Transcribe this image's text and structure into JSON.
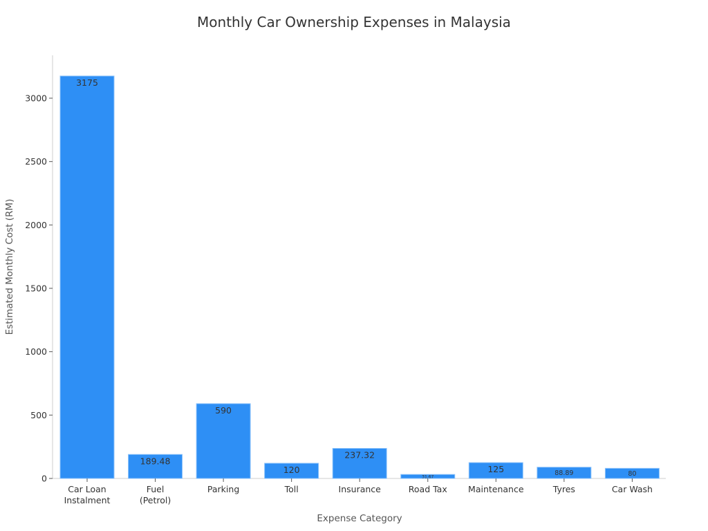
{
  "chart_data": {
    "type": "bar",
    "title": "Monthly Car Ownership Expenses in Malaysia",
    "xlabel": "Expense Category",
    "ylabel": "Estimated Monthly Cost (RM)",
    "categories": [
      "Car Loan\nInstalment",
      "Fuel\n(Petrol)",
      "Parking",
      "Toll",
      "Insurance",
      "Road Tax",
      "Maintenance",
      "Tyres",
      "Car Wash"
    ],
    "values": [
      3175,
      189.48,
      590,
      120,
      237.32,
      31.67,
      125,
      88.89,
      80
    ],
    "data_labels": [
      "3175",
      "189.48",
      "590",
      "120",
      "237.32",
      "31.67",
      "125",
      "88.89",
      "80"
    ],
    "yticks": [
      0,
      500,
      1000,
      1500,
      2000,
      2500,
      3000
    ],
    "ylim": [
      0,
      3334
    ],
    "grid": false,
    "legend": null,
    "bar_color": "#2e8ff5"
  }
}
